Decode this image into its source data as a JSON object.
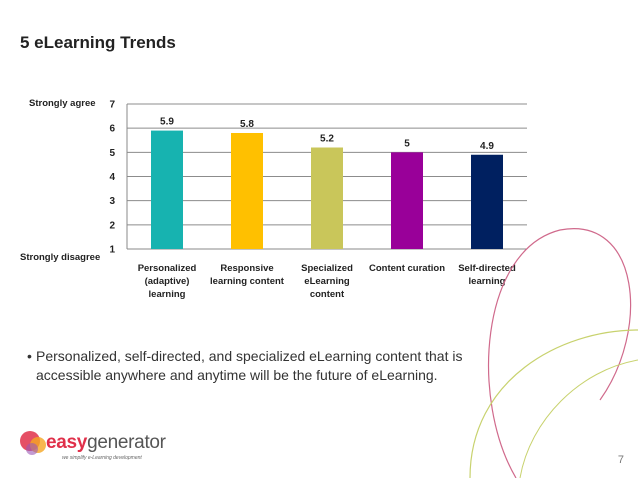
{
  "slide": {
    "title": "5 eLearning Trends",
    "bullet": "Personalized, self-directed, and specialized eLearning content that is accessible anywhere and anytime will be the future of eLearning.",
    "page_number": "7"
  },
  "logo": {
    "easy": "easy",
    "generator": "generator",
    "tagline": "we simplify e-Learning development"
  },
  "chart_data": {
    "type": "bar",
    "categories": [
      [
        "Personalized",
        "(adaptive)",
        "learning"
      ],
      [
        "Responsive",
        "learning content"
      ],
      [
        "Specialized",
        "eLearning",
        "content"
      ],
      [
        "Content curation"
      ],
      [
        "Self-directed",
        "learning"
      ]
    ],
    "values": [
      5.9,
      5.8,
      5.2,
      5,
      4.9
    ],
    "value_labels": [
      "5.9",
      "5.8",
      "5.2",
      "5",
      "4.9"
    ],
    "colors": [
      "#17b3b0",
      "#ffc000",
      "#c9c65a",
      "#990099",
      "#002060"
    ],
    "ylim": [
      1,
      7
    ],
    "yticks": [
      1,
      2,
      3,
      4,
      5,
      6,
      7
    ],
    "ylabel_top": "Strongly agree",
    "ylabel_bottom": "Strongly disagree",
    "grid": true
  }
}
